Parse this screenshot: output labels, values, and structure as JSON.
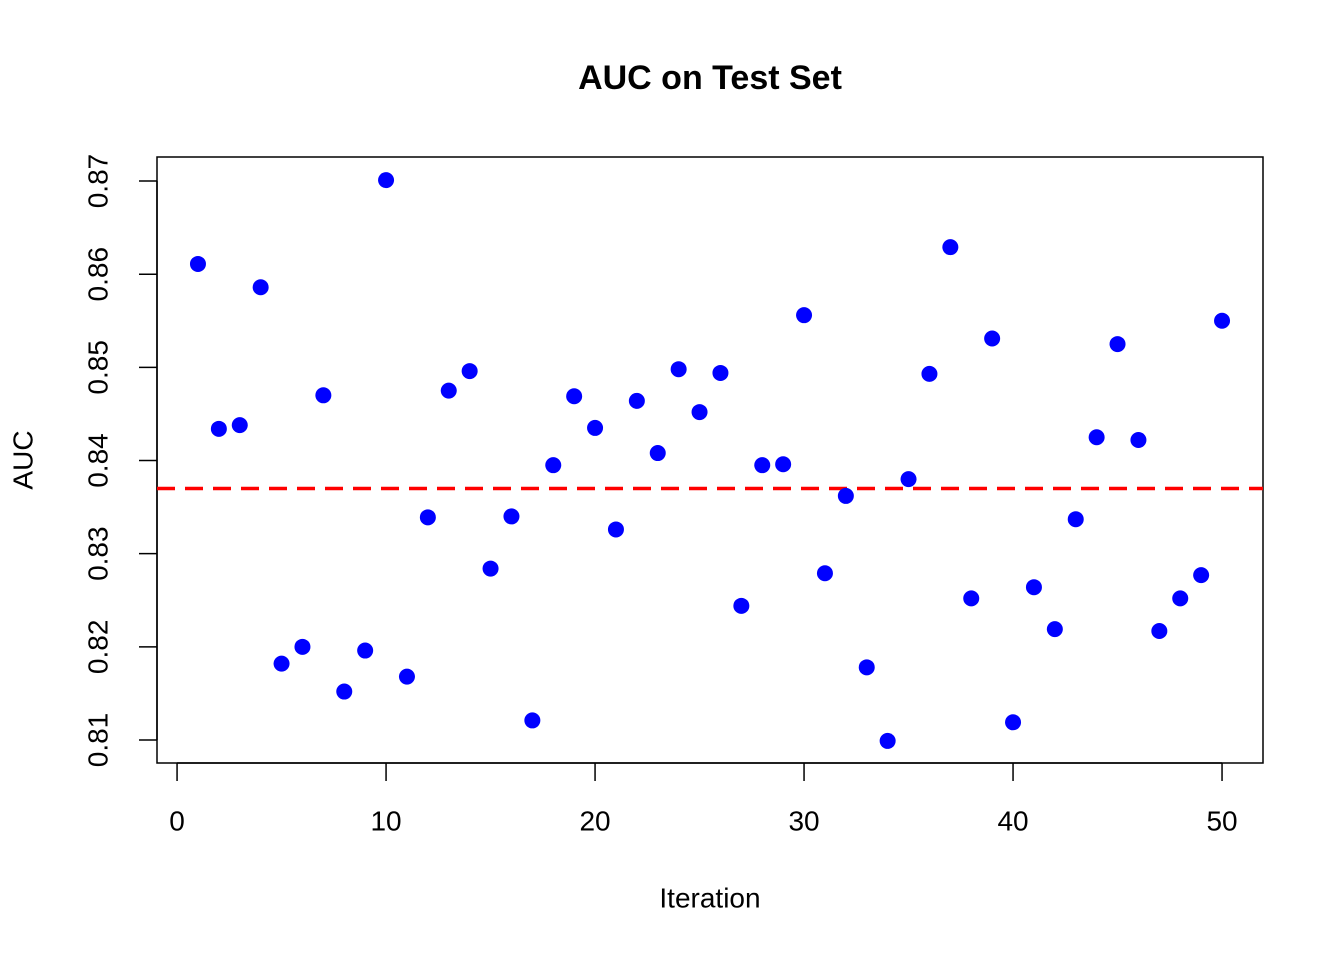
{
  "chart_data": {
    "type": "scatter",
    "title": "AUC on Test Set",
    "x_label": "Iteration",
    "y_label": "AUC",
    "x": [
      1,
      2,
      3,
      4,
      5,
      6,
      7,
      8,
      9,
      10,
      11,
      12,
      13,
      14,
      15,
      16,
      17,
      18,
      19,
      20,
      21,
      22,
      23,
      24,
      25,
      26,
      27,
      28,
      29,
      30,
      31,
      32,
      33,
      34,
      35,
      36,
      37,
      38,
      39,
      40,
      41,
      42,
      43,
      44,
      45,
      46,
      47,
      48,
      49,
      50
    ],
    "series": [
      {
        "color": "#0000ff",
        "values": [
          0.8611,
          0.8434,
          0.8438,
          0.8586,
          0.8182,
          0.82,
          0.847,
          0.8152,
          0.8196,
          0.8701,
          0.8168,
          0.8339,
          0.8475,
          0.8496,
          0.8284,
          0.834,
          0.8121,
          0.8395,
          0.8469,
          0.8435,
          0.8326,
          0.8464,
          0.8408,
          0.8498,
          0.8452,
          0.8494,
          0.8244,
          0.8395,
          0.8396,
          0.8556,
          0.8279,
          0.8362,
          0.8178,
          0.8099,
          0.838,
          0.8493,
          0.8629,
          0.8252,
          0.8531,
          0.8119,
          0.8264,
          0.8219,
          0.8337,
          0.8425,
          0.8525,
          0.8422,
          0.8217,
          0.8252,
          0.8277,
          0.855
        ]
      }
    ],
    "hline": {
      "value": 0.837,
      "color": "#ff0000",
      "dashed": true
    },
    "xlim": [
      -0.96,
      51.96
    ],
    "xticks": [
      0,
      10,
      20,
      30,
      40,
      50
    ],
    "ylim": [
      0.80753,
      0.87258
    ],
    "yticks": [
      0.81,
      0.82,
      0.83,
      0.84,
      0.85,
      0.86,
      0.87
    ]
  }
}
